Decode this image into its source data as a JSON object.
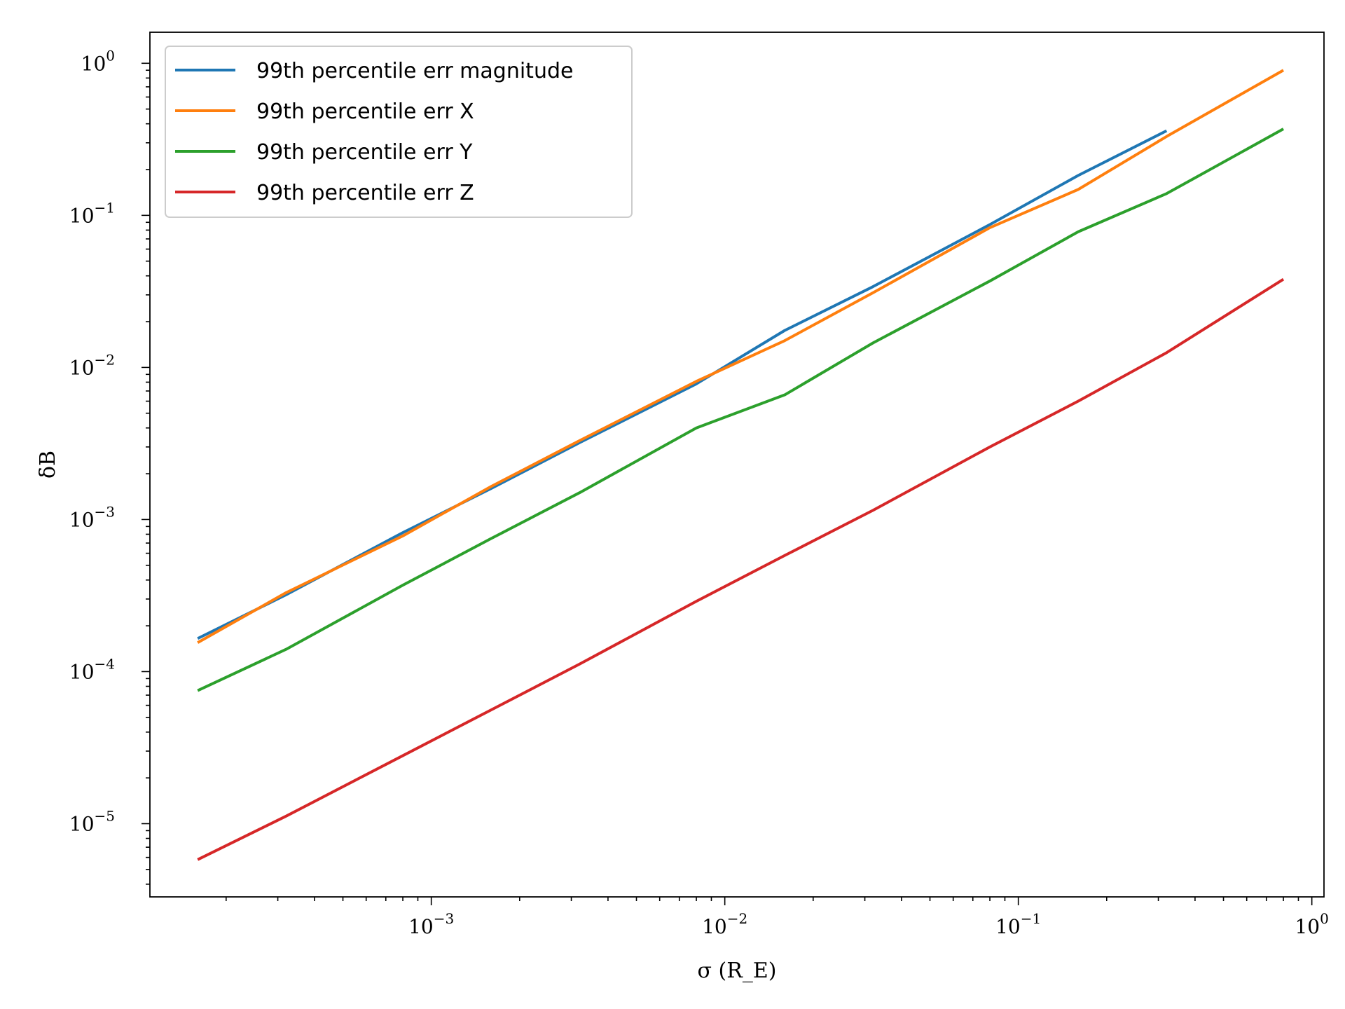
{
  "chart_data": {
    "type": "line",
    "xscale": "log",
    "yscale": "log",
    "xlabel": "σ (R_E)",
    "ylabel": "δB",
    "xlim": [
      0.00011,
      1.1
    ],
    "ylim": [
      3.3e-06,
      1.6
    ],
    "x_ticks": [
      {
        "base": "10",
        "exp": "−3",
        "value": 0.001
      },
      {
        "base": "10",
        "exp": "−2",
        "value": 0.01
      },
      {
        "base": "10",
        "exp": "−1",
        "value": 0.1
      },
      {
        "base": "10",
        "exp": "0",
        "value": 1
      }
    ],
    "y_ticks": [
      {
        "base": "10",
        "exp": "−5",
        "value": 1e-05
      },
      {
        "base": "10",
        "exp": "−4",
        "value": 0.0001
      },
      {
        "base": "10",
        "exp": "−3",
        "value": 0.001
      },
      {
        "base": "10",
        "exp": "−2",
        "value": 0.01
      },
      {
        "base": "10",
        "exp": "−1",
        "value": 0.1
      },
      {
        "base": "10",
        "exp": "0",
        "value": 1
      }
    ],
    "grid": false,
    "legend_position": "top-left",
    "series": [
      {
        "name": "99th percentile err magnitude",
        "color": "#1f77b4",
        "x": [
          0.00016,
          0.00032,
          0.0008,
          0.0016,
          0.0032,
          0.008,
          0.016,
          0.032,
          0.08,
          0.16,
          0.32
        ],
        "y": [
          0.000165,
          0.00032,
          0.00082,
          0.0016,
          0.0032,
          0.0078,
          0.0175,
          0.034,
          0.087,
          0.183,
          0.36
        ]
      },
      {
        "name": "99th percentile err X",
        "color": "#ff7f0e",
        "x": [
          0.00016,
          0.00032,
          0.0008,
          0.0016,
          0.0032,
          0.008,
          0.016,
          0.032,
          0.08,
          0.16,
          0.32,
          0.8
        ],
        "y": [
          0.000155,
          0.00033,
          0.00078,
          0.00165,
          0.0033,
          0.0081,
          0.015,
          0.031,
          0.083,
          0.148,
          0.33,
          0.9
        ]
      },
      {
        "name": "99th percentile err Y",
        "color": "#2ca02c",
        "x": [
          0.00016,
          0.00032,
          0.0008,
          0.0016,
          0.0032,
          0.008,
          0.016,
          0.032,
          0.08,
          0.16,
          0.32,
          0.8
        ],
        "y": [
          7.5e-05,
          0.00014,
          0.00037,
          0.00075,
          0.0015,
          0.004,
          0.0066,
          0.0145,
          0.037,
          0.078,
          0.139,
          0.37
        ]
      },
      {
        "name": "99th percentile err Z",
        "color": "#d62728",
        "x": [
          0.00016,
          0.00032,
          0.0008,
          0.0016,
          0.0032,
          0.008,
          0.016,
          0.032,
          0.08,
          0.16,
          0.32,
          0.8
        ],
        "y": [
          5.8e-06,
          1.12e-05,
          2.8e-05,
          5.6e-05,
          0.000112,
          0.00029,
          0.00058,
          0.00115,
          0.003,
          0.006,
          0.0125,
          0.038
        ]
      }
    ]
  }
}
